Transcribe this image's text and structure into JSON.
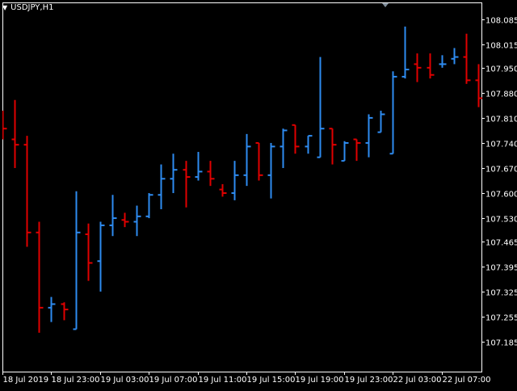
{
  "chart_title": "USDJPY,H1",
  "colors": {
    "background": "#000000",
    "frame": "#ffffff",
    "bull": "#2e8bf0",
    "bear": "#e00000",
    "text": "#ffffff"
  },
  "chart_data": {
    "type": "ohlc",
    "symbol": "USDJPY",
    "timeframe": "H1",
    "ylim": [
      107.165,
      108.115
    ],
    "y_ticks": [
      "108.085",
      "108.015",
      "107.950",
      "107.880",
      "107.810",
      "107.740",
      "107.670",
      "107.600",
      "107.530",
      "107.465",
      "107.395",
      "107.325",
      "107.255",
      "107.185"
    ],
    "x_ticks": [
      {
        "bar": 0,
        "label": "18 Jul 2019"
      },
      {
        "bar": 4,
        "label": "18 Jul 23:00"
      },
      {
        "bar": 8,
        "label": "19 Jul 03:00"
      },
      {
        "bar": 12,
        "label": "19 Jul 07:00"
      },
      {
        "bar": 16,
        "label": "19 Jul 11:00"
      },
      {
        "bar": 20,
        "label": "19 Jul 15:00"
      },
      {
        "bar": 24,
        "label": "19 Jul 19:00"
      },
      {
        "bar": 28,
        "label": "19 Jul 23:00"
      },
      {
        "bar": 32,
        "label": "22 Jul 03:00"
      },
      {
        "bar": 36,
        "label": "22 Jul 07:00"
      }
    ],
    "bars": [
      {
        "o": 107.8,
        "h": 107.83,
        "l": 107.75,
        "c": 107.78
      },
      {
        "o": 107.75,
        "h": 107.86,
        "l": 107.67,
        "c": 107.735
      },
      {
        "o": 107.735,
        "h": 107.76,
        "l": 107.45,
        "c": 107.49
      },
      {
        "o": 107.49,
        "h": 107.52,
        "l": 107.21,
        "c": 107.28
      },
      {
        "o": 107.28,
        "h": 107.31,
        "l": 107.24,
        "c": 107.29
      },
      {
        "o": 107.29,
        "h": 107.295,
        "l": 107.245,
        "c": 107.275
      },
      {
        "o": 107.22,
        "h": 107.605,
        "l": 107.22,
        "c": 107.49
      },
      {
        "o": 107.485,
        "h": 107.515,
        "l": 107.355,
        "c": 107.405
      },
      {
        "o": 107.41,
        "h": 107.52,
        "l": 107.325,
        "c": 107.51
      },
      {
        "o": 107.51,
        "h": 107.595,
        "l": 107.48,
        "c": 107.53
      },
      {
        "o": 107.525,
        "h": 107.545,
        "l": 107.505,
        "c": 107.52
      },
      {
        "o": 107.52,
        "h": 107.565,
        "l": 107.48,
        "c": 107.535
      },
      {
        "o": 107.535,
        "h": 107.6,
        "l": 107.53,
        "c": 107.595
      },
      {
        "o": 107.595,
        "h": 107.68,
        "l": 107.555,
        "c": 107.64
      },
      {
        "o": 107.64,
        "h": 107.71,
        "l": 107.6,
        "c": 107.665
      },
      {
        "o": 107.665,
        "h": 107.69,
        "l": 107.56,
        "c": 107.645
      },
      {
        "o": 107.645,
        "h": 107.715,
        "l": 107.635,
        "c": 107.66
      },
      {
        "o": 107.66,
        "h": 107.69,
        "l": 107.62,
        "c": 107.64
      },
      {
        "o": 107.61,
        "h": 107.625,
        "l": 107.59,
        "c": 107.6
      },
      {
        "o": 107.6,
        "h": 107.69,
        "l": 107.58,
        "c": 107.65
      },
      {
        "o": 107.65,
        "h": 107.765,
        "l": 107.62,
        "c": 107.73
      },
      {
        "o": 107.74,
        "h": 107.74,
        "l": 107.635,
        "c": 107.65
      },
      {
        "o": 107.65,
        "h": 107.74,
        "l": 107.585,
        "c": 107.73
      },
      {
        "o": 107.73,
        "h": 107.78,
        "l": 107.67,
        "c": 107.775
      },
      {
        "o": 107.79,
        "h": 107.79,
        "l": 107.71,
        "c": 107.73
      },
      {
        "o": 107.73,
        "h": 107.76,
        "l": 107.71,
        "c": 107.76
      },
      {
        "o": 107.7,
        "h": 107.98,
        "l": 107.7,
        "c": 107.78
      },
      {
        "o": 107.78,
        "h": 107.78,
        "l": 107.68,
        "c": 107.735
      },
      {
        "o": 107.69,
        "h": 107.745,
        "l": 107.69,
        "c": 107.74
      },
      {
        "o": 107.75,
        "h": 107.75,
        "l": 107.69,
        "c": 107.74
      },
      {
        "o": 107.74,
        "h": 107.82,
        "l": 107.7,
        "c": 107.81
      },
      {
        "o": 107.77,
        "h": 107.83,
        "l": 107.77,
        "c": 107.82
      },
      {
        "o": 107.71,
        "h": 107.94,
        "l": 107.71,
        "c": 107.925
      },
      {
        "o": 107.925,
        "h": 108.065,
        "l": 107.92,
        "c": 107.945
      },
      {
        "o": 107.96,
        "h": 107.99,
        "l": 107.91,
        "c": 107.95
      },
      {
        "o": 107.95,
        "h": 107.99,
        "l": 107.92,
        "c": 107.93
      },
      {
        "o": 107.96,
        "h": 107.985,
        "l": 107.95,
        "c": 107.96
      },
      {
        "o": 107.975,
        "h": 108.005,
        "l": 107.96,
        "c": 107.98
      },
      {
        "o": 107.98,
        "h": 108.045,
        "l": 107.905,
        "c": 107.915
      },
      {
        "o": 107.915,
        "h": 107.96,
        "l": 107.84,
        "c": 107.865
      }
    ]
  }
}
